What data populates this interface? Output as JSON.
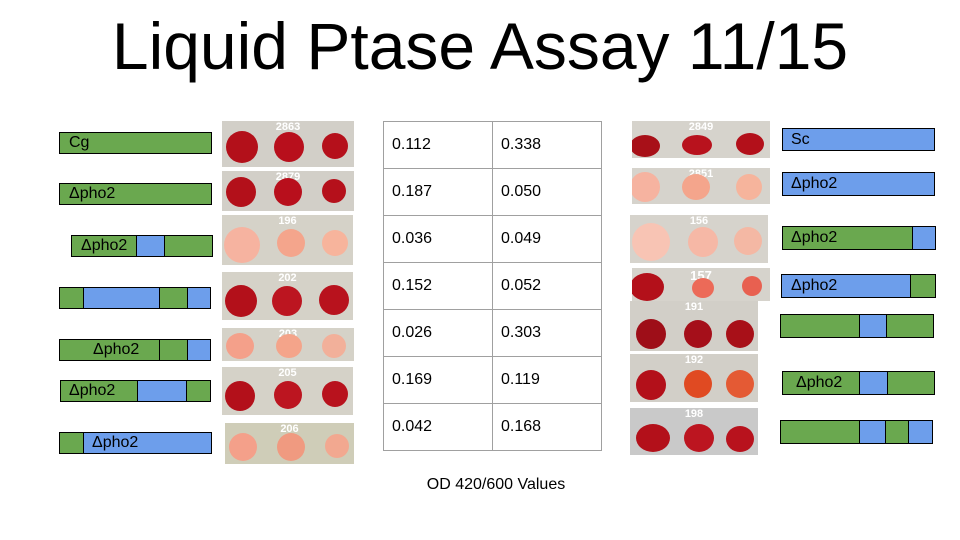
{
  "title": "Liquid Ptase Assay 11/15",
  "left": {
    "labels": [
      "Cg",
      "Δpho2",
      "Δpho2",
      "",
      "Δpho2",
      "Δpho2",
      "Δpho2"
    ],
    "plates": [
      "2863",
      "2879",
      "196",
      "202",
      "203",
      "205",
      "206"
    ]
  },
  "right": {
    "labels": [
      "Sc",
      "Δpho2",
      "Δpho2",
      "Δpho2",
      "",
      "Δpho2",
      ""
    ],
    "plates": [
      "2849",
      "2851",
      "156",
      "157",
      "191",
      "192",
      "198"
    ]
  },
  "table": {
    "rows": [
      [
        "0.112",
        "0.338"
      ],
      [
        "0.187",
        "0.050"
      ],
      [
        "0.036",
        "0.049"
      ],
      [
        "0.152",
        "0.052"
      ],
      [
        "0.026",
        "0.303"
      ],
      [
        "0.169",
        "0.119"
      ],
      [
        "0.042",
        "0.168"
      ]
    ],
    "caption": "OD 420/600 Values"
  },
  "colors": {
    "green": "#6aa84f",
    "blue": "#6d9eeb",
    "red": "#c0141e",
    "pink": "#f4a08a"
  }
}
